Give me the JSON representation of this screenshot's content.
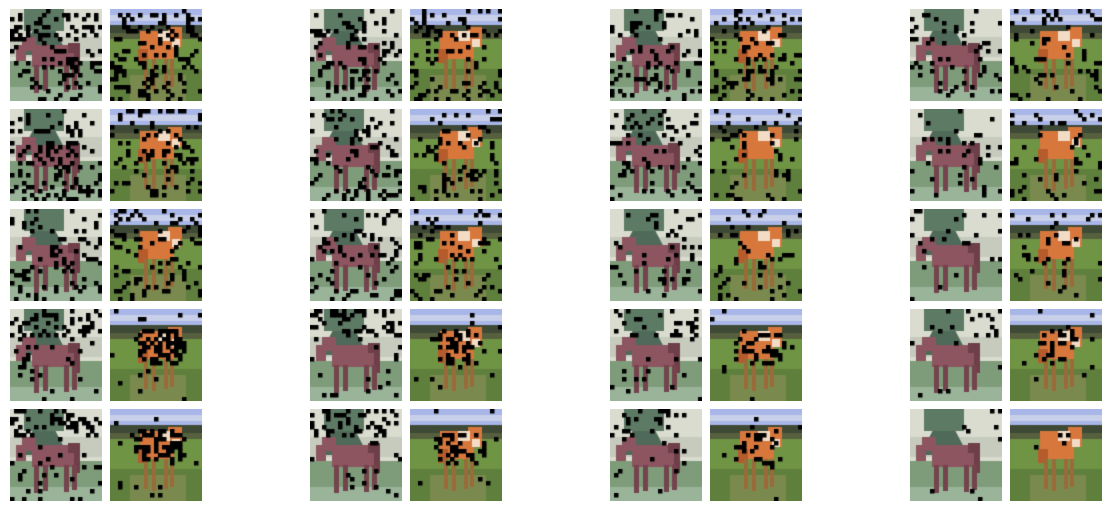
{
  "figure": {
    "rows": 5,
    "groups": 4,
    "pair": [
      "brown-horse",
      "orange-horse"
    ],
    "row_mask_level": [
      4,
      3,
      2,
      1,
      0
    ],
    "group_mask_level": [
      3,
      2,
      1,
      0
    ],
    "mask_color": "#000000"
  }
}
